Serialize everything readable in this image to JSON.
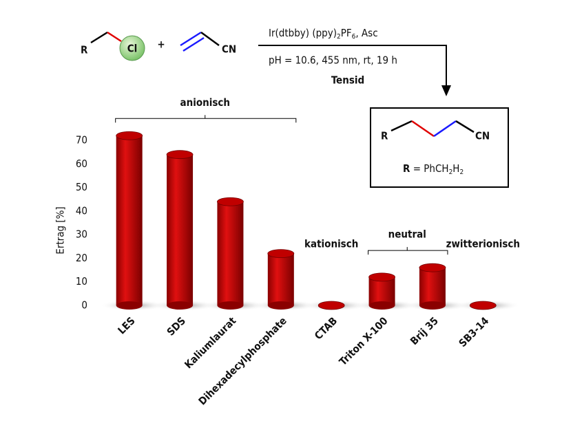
{
  "scheme": {
    "reactant": {
      "r": "R",
      "cl": "Cl",
      "plus": "+",
      "cn": "CN"
    },
    "conditions": {
      "line1": [
        "Ir(dtbby) (ppy)",
        "2",
        "PF",
        "6",
        ", Asc"
      ],
      "line2": "pH = 10.6, 455 nm, rt, 19 h",
      "line3": "Tensid"
    },
    "product": {
      "r": "R",
      "cn": "CN",
      "legend": [
        "R",
        " = PhCH",
        "2",
        "H",
        "2"
      ]
    }
  },
  "chart_data": {
    "type": "bar",
    "ylabel": "Ertrag [%]",
    "categories": [
      "LES",
      "SDS",
      "Kaliumlaurat",
      "Dihexadecylphosphate",
      "CTAB",
      "Triton X-100",
      "Brij 35",
      "SB3-14"
    ],
    "values": [
      72,
      64,
      44,
      22,
      0,
      12,
      16,
      0
    ],
    "color": "#c00000",
    "ylim": [
      0,
      75
    ],
    "yticks": [
      0,
      10,
      20,
      30,
      40,
      50,
      60,
      70
    ],
    "groups": [
      {
        "label": "anionisch",
        "members": [
          "LES",
          "SDS",
          "Kaliumlaurat",
          "Dihexadecylphosphate"
        ]
      },
      {
        "label": "kationisch",
        "members": [
          "CTAB"
        ]
      },
      {
        "label": "neutral",
        "members": [
          "Triton X-100",
          "Brij 35"
        ]
      },
      {
        "label": "zwitterionisch",
        "members": [
          "SB3-14"
        ]
      }
    ]
  }
}
